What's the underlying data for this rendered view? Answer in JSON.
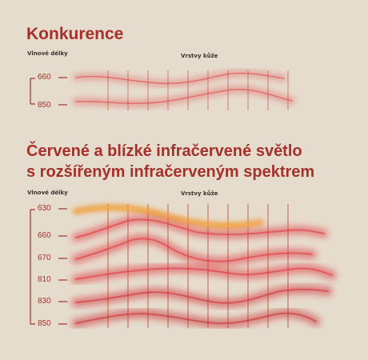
{
  "section1": {
    "title": "Konkurence",
    "y_label": "Vlnové délky",
    "x_label": "Vrstvy kůže",
    "wavelengths": [
      "660",
      "850"
    ]
  },
  "section2": {
    "title_line1": "Červené a blízké infračervené světlo",
    "title_line2": "s rozšířeným infračerveným spektrem",
    "y_label": "Vlnové délky",
    "x_label": "Vrstvy kůže",
    "wavelengths": [
      "630",
      "660",
      "670",
      "810",
      "830",
      "850"
    ]
  },
  "colors": {
    "title": "#a6312b",
    "background": "#e6dccd",
    "red_glow": "#e0323a",
    "orange_glow": "#f0962a",
    "layer_line": "#b44a30"
  }
}
